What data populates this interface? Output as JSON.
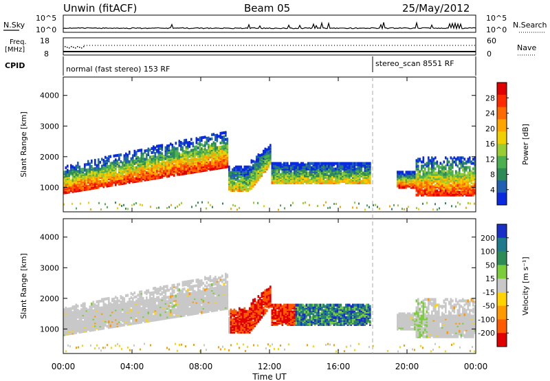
{
  "header": {
    "station": "Unwin (fitACF)",
    "beam": "Beam 05",
    "date": "25/May/2012"
  },
  "top_panels": {
    "nsky_label": "N.Sky",
    "nsky_ticks": [
      "10^5",
      "10^0"
    ],
    "nsearch_label": "N.Search",
    "freq_label": "Freq.",
    "freq_unit": "[MHz]",
    "freq_ticks": [
      "18",
      "8"
    ],
    "nave_label": "Nave",
    "nave_ticks": [
      "60",
      "0"
    ],
    "cpid_label": "CPID",
    "cpid_modes": [
      {
        "text": "normal (fast stereo) 153 RF"
      },
      {
        "text": "stereo_scan 8551 RF"
      }
    ]
  },
  "chart_data": [
    {
      "type": "heatmap",
      "name": "power",
      "ylabel": "Slant Range [km]",
      "y_ticks": [
        "1000",
        "2000",
        "3000",
        "4000"
      ],
      "ylim": [
        200,
        4600
      ],
      "xlim_hours": [
        0,
        24
      ],
      "colorbar": {
        "label": "Power [dB]",
        "ticks": [
          "4",
          "8",
          "12",
          "16",
          "20",
          "24",
          "28"
        ],
        "range": [
          0,
          32
        ],
        "colors": [
          "#0a2ae0",
          "#1f5fb4",
          "#2e8b57",
          "#4caf50",
          "#9acd32",
          "#f0d000",
          "#ffa500",
          "#ff6a00",
          "#ff2a00",
          "#e00000"
        ]
      }
    },
    {
      "type": "heatmap",
      "name": "velocity",
      "ylabel": "Slant Range [km]",
      "y_ticks": [
        "1000",
        "2000",
        "3000",
        "4000"
      ],
      "ylim": [
        200,
        4600
      ],
      "xlim_hours": [
        0,
        24
      ],
      "colorbar": {
        "label": "Velocity [m s⁻¹]",
        "ticks": [
          "200",
          "100",
          "50",
          "15",
          "-15",
          "-50",
          "-100",
          "-200"
        ],
        "colors": [
          "#1a2fc8",
          "#1f7a8c",
          "#2e8b57",
          "#7ccd3c",
          "#c8c8c8",
          "#ffd400",
          "#ff9a00",
          "#ff5a00",
          "#e00000"
        ]
      }
    }
  ],
  "x_axis": {
    "label": "Time UT",
    "ticks": [
      "00:00",
      "04:00",
      "08:00",
      "12:00",
      "16:00",
      "20:00",
      "00:00"
    ],
    "hours": [
      0,
      4,
      8,
      12,
      16,
      20,
      24
    ]
  },
  "mode_change_hour": 18.0
}
